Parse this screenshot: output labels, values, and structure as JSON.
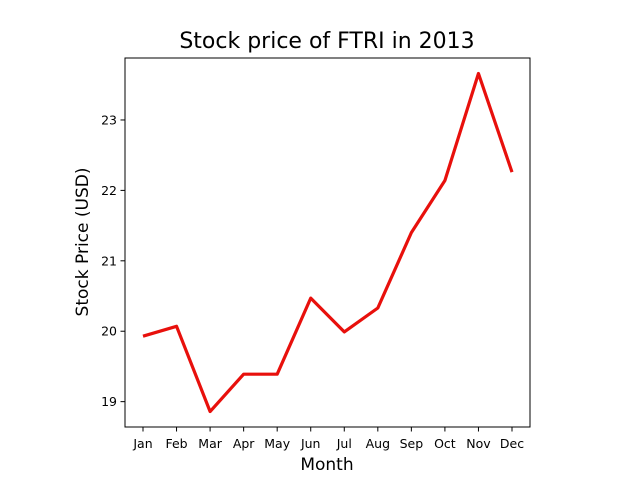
{
  "chart_data": {
    "type": "line",
    "title": "Stock price of FTRI in 2013",
    "xlabel": "Month",
    "ylabel": "Stock Price (USD)",
    "categories": [
      "Jan",
      "Feb",
      "Mar",
      "Apr",
      "May",
      "Jun",
      "Jul",
      "Aug",
      "Sep",
      "Oct",
      "Nov",
      "Dec"
    ],
    "series": [
      {
        "values": [
          19.93,
          20.07,
          18.86,
          19.39,
          19.39,
          20.47,
          19.99,
          20.33,
          21.4,
          22.14,
          23.66,
          22.26
        ],
        "color": "#e8100c"
      }
    ],
    "ylim": [
      18.64,
      23.88
    ],
    "yticks": [
      19,
      20,
      21,
      22,
      23
    ],
    "grid": false,
    "legend": "none"
  }
}
